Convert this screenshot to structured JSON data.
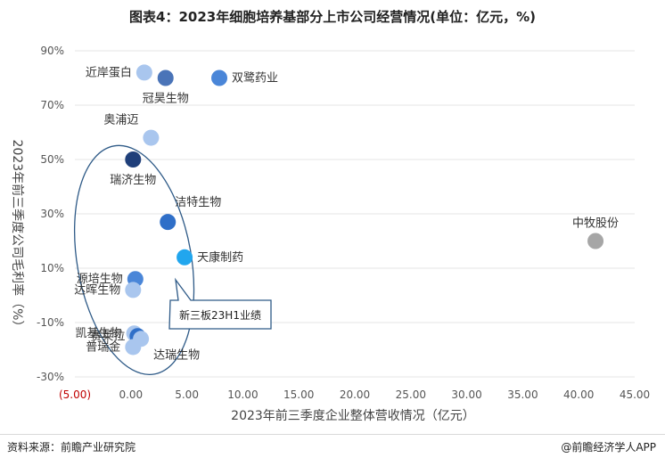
{
  "title": "图表4：2023年细胞培养基部分上市公司经营情况(单位：亿元，%)",
  "footer": {
    "source": "资料来源：前瞻产业研究院",
    "credit": "@前瞻经济学人APP"
  },
  "callout": "新三板23H1业绩",
  "colors": {
    "dark_navy": "#1f3f7a",
    "blue": "#2f6fc8",
    "medium_blue": "#4a86d8",
    "light_blue": "#a9c6ee",
    "bright_blue": "#21a6ee",
    "steel_blue": "#4a74b8",
    "gray": "#a6a6a6",
    "grid": "#e6e6e6",
    "oval": "#2e5a87"
  },
  "chart_data": {
    "type": "scatter",
    "xlabel": "2023年前三季度企业整体营收情况（亿元）",
    "ylabel": "2023年前三季度公司毛利率（%）",
    "xlim": [
      -5,
      45
    ],
    "ylim": [
      -30,
      90
    ],
    "x_ticks": [
      "(5.00)",
      "0.00",
      "5.00",
      "10.00",
      "15.00",
      "20.00",
      "25.00",
      "30.00",
      "35.00",
      "40.00",
      "45.00"
    ],
    "y_ticks": [
      "-30%",
      "-10%",
      "10%",
      "30%",
      "50%",
      "70%",
      "90%"
    ],
    "grid": "horizontal",
    "points": [
      {
        "label": "近岸蛋白",
        "x": 1.2,
        "y": 82,
        "color": "light_blue",
        "label_side": "left"
      },
      {
        "label": "冠昊生物",
        "x": 3.1,
        "y": 80,
        "color": "steel_blue",
        "label_side": "below"
      },
      {
        "label": "双鹭药业",
        "x": 7.9,
        "y": 80,
        "color": "medium_blue",
        "label_side": "right"
      },
      {
        "label": "奥浦迈",
        "x": 1.8,
        "y": 58,
        "color": "light_blue",
        "label_side": "above-left"
      },
      {
        "label": "瑞济生物",
        "x": 0.2,
        "y": 50,
        "color": "dark_navy",
        "label_side": "below"
      },
      {
        "label": "洁特生物",
        "x": 3.3,
        "y": 27,
        "color": "blue",
        "label_side": "above-right"
      },
      {
        "label": "天康制药",
        "x": 4.8,
        "y": 14,
        "color": "bright_blue",
        "label_side": "right"
      },
      {
        "label": "中牧股份",
        "x": 41.5,
        "y": 20,
        "color": "gray",
        "label_side": "above"
      },
      {
        "label": "源培生物",
        "x": 0.4,
        "y": 6,
        "color": "medium_blue",
        "label_side": "left"
      },
      {
        "label": "达晖生物",
        "x": 0.2,
        "y": 2,
        "color": "light_blue",
        "label_side": "left"
      },
      {
        "label": "凯基生物",
        "x": 0.3,
        "y": -14,
        "color": "light_blue",
        "label_side": "left"
      },
      {
        "label": "赛莱拉",
        "x": 0.6,
        "y": -15,
        "color": "blue",
        "label_side": "left"
      },
      {
        "label": "普瑞金",
        "x": 0.2,
        "y": -19,
        "color": "light_blue",
        "label_side": "left"
      },
      {
        "label": "达瑞生物",
        "x": 0.9,
        "y": -16,
        "color": "light_blue",
        "label_side": "below-right"
      }
    ]
  }
}
